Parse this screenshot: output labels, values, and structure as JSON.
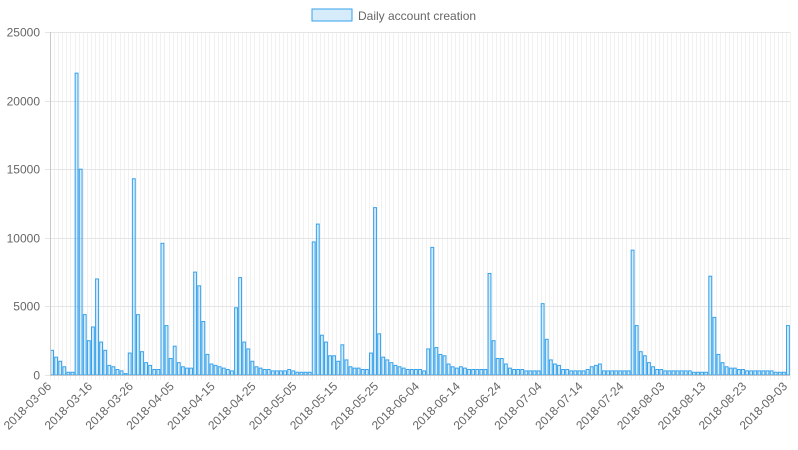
{
  "chart_data": {
    "type": "bar",
    "legend": {
      "position": "top",
      "label": "Daily account creation"
    },
    "colors": {
      "bar_fill": "rgba(54,162,235,0.2)",
      "bar_stroke": "#36a2eb",
      "grid": "#e5e5e5",
      "axis": "#c9c9c9",
      "text": "#666666"
    },
    "grid": true,
    "ylim": [
      0,
      25000
    ],
    "y_ticks": [
      0,
      5000,
      10000,
      15000,
      20000,
      25000
    ],
    "x_start": "2018-03-06",
    "x_end": "2018-09-03",
    "x_tick_labels": [
      "2018-03-06",
      "2018-03-16",
      "2018-03-26",
      "2018-04-05",
      "2018-04-15",
      "2018-04-25",
      "2018-05-05",
      "2018-05-15",
      "2018-05-25",
      "2018-06-04",
      "2018-06-14",
      "2018-06-24",
      "2018-07-04",
      "2018-07-14",
      "2018-07-24",
      "2018-08-03",
      "2018-08-13",
      "2018-08-23",
      "2018-09-03"
    ],
    "values": [
      1800,
      1300,
      1000,
      600,
      200,
      200,
      22000,
      15000,
      4400,
      2500,
      3500,
      7000,
      2400,
      1800,
      700,
      600,
      400,
      300,
      100,
      1600,
      14300,
      4400,
      1700,
      900,
      700,
      400,
      400,
      9600,
      3600,
      1200,
      2100,
      900,
      600,
      500,
      500,
      7500,
      6500,
      3900,
      1500,
      800,
      700,
      600,
      500,
      400,
      300,
      4900,
      7100,
      2400,
      1900,
      1000,
      600,
      500,
      400,
      400,
      300,
      300,
      300,
      300,
      400,
      300,
      200,
      200,
      200,
      200,
      9700,
      11000,
      2900,
      2400,
      1400,
      1400,
      1000,
      2200,
      1100,
      600,
      500,
      500,
      400,
      400,
      1600,
      12200,
      3000,
      1300,
      1100,
      900,
      700,
      600,
      500,
      400,
      400,
      400,
      400,
      300,
      1900,
      9300,
      2000,
      1500,
      1400,
      800,
      600,
      500,
      600,
      500,
      400,
      400,
      400,
      400,
      400,
      7400,
      2500,
      1200,
      1200,
      800,
      500,
      400,
      400,
      400,
      300,
      300,
      300,
      300,
      5200,
      2600,
      1100,
      800,
      700,
      400,
      400,
      300,
      300,
      300,
      300,
      400,
      600,
      700,
      800,
      300,
      300,
      300,
      300,
      300,
      300,
      300,
      9100,
      3600,
      1700,
      1400,
      900,
      600,
      400,
      400,
      300,
      300,
      300,
      300,
      300,
      300,
      300,
      200,
      200,
      200,
      200,
      7200,
      4200,
      1500,
      900,
      600,
      500,
      500,
      400,
      400,
      300,
      300,
      300,
      300,
      300,
      300,
      300,
      200,
      200,
      200,
      3600
    ]
  }
}
